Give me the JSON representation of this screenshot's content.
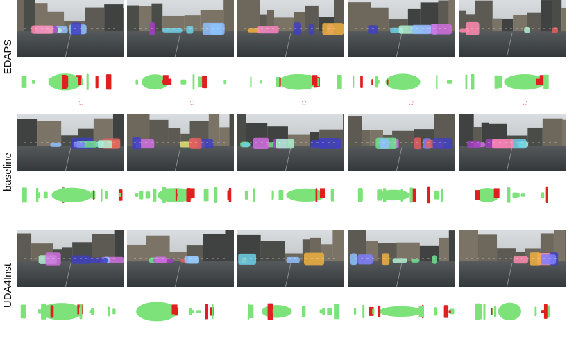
{
  "rows": [
    {
      "label": "EDAPS"
    },
    {
      "label": "baseline"
    },
    {
      "label": "UDA4Inst"
    }
  ]
}
